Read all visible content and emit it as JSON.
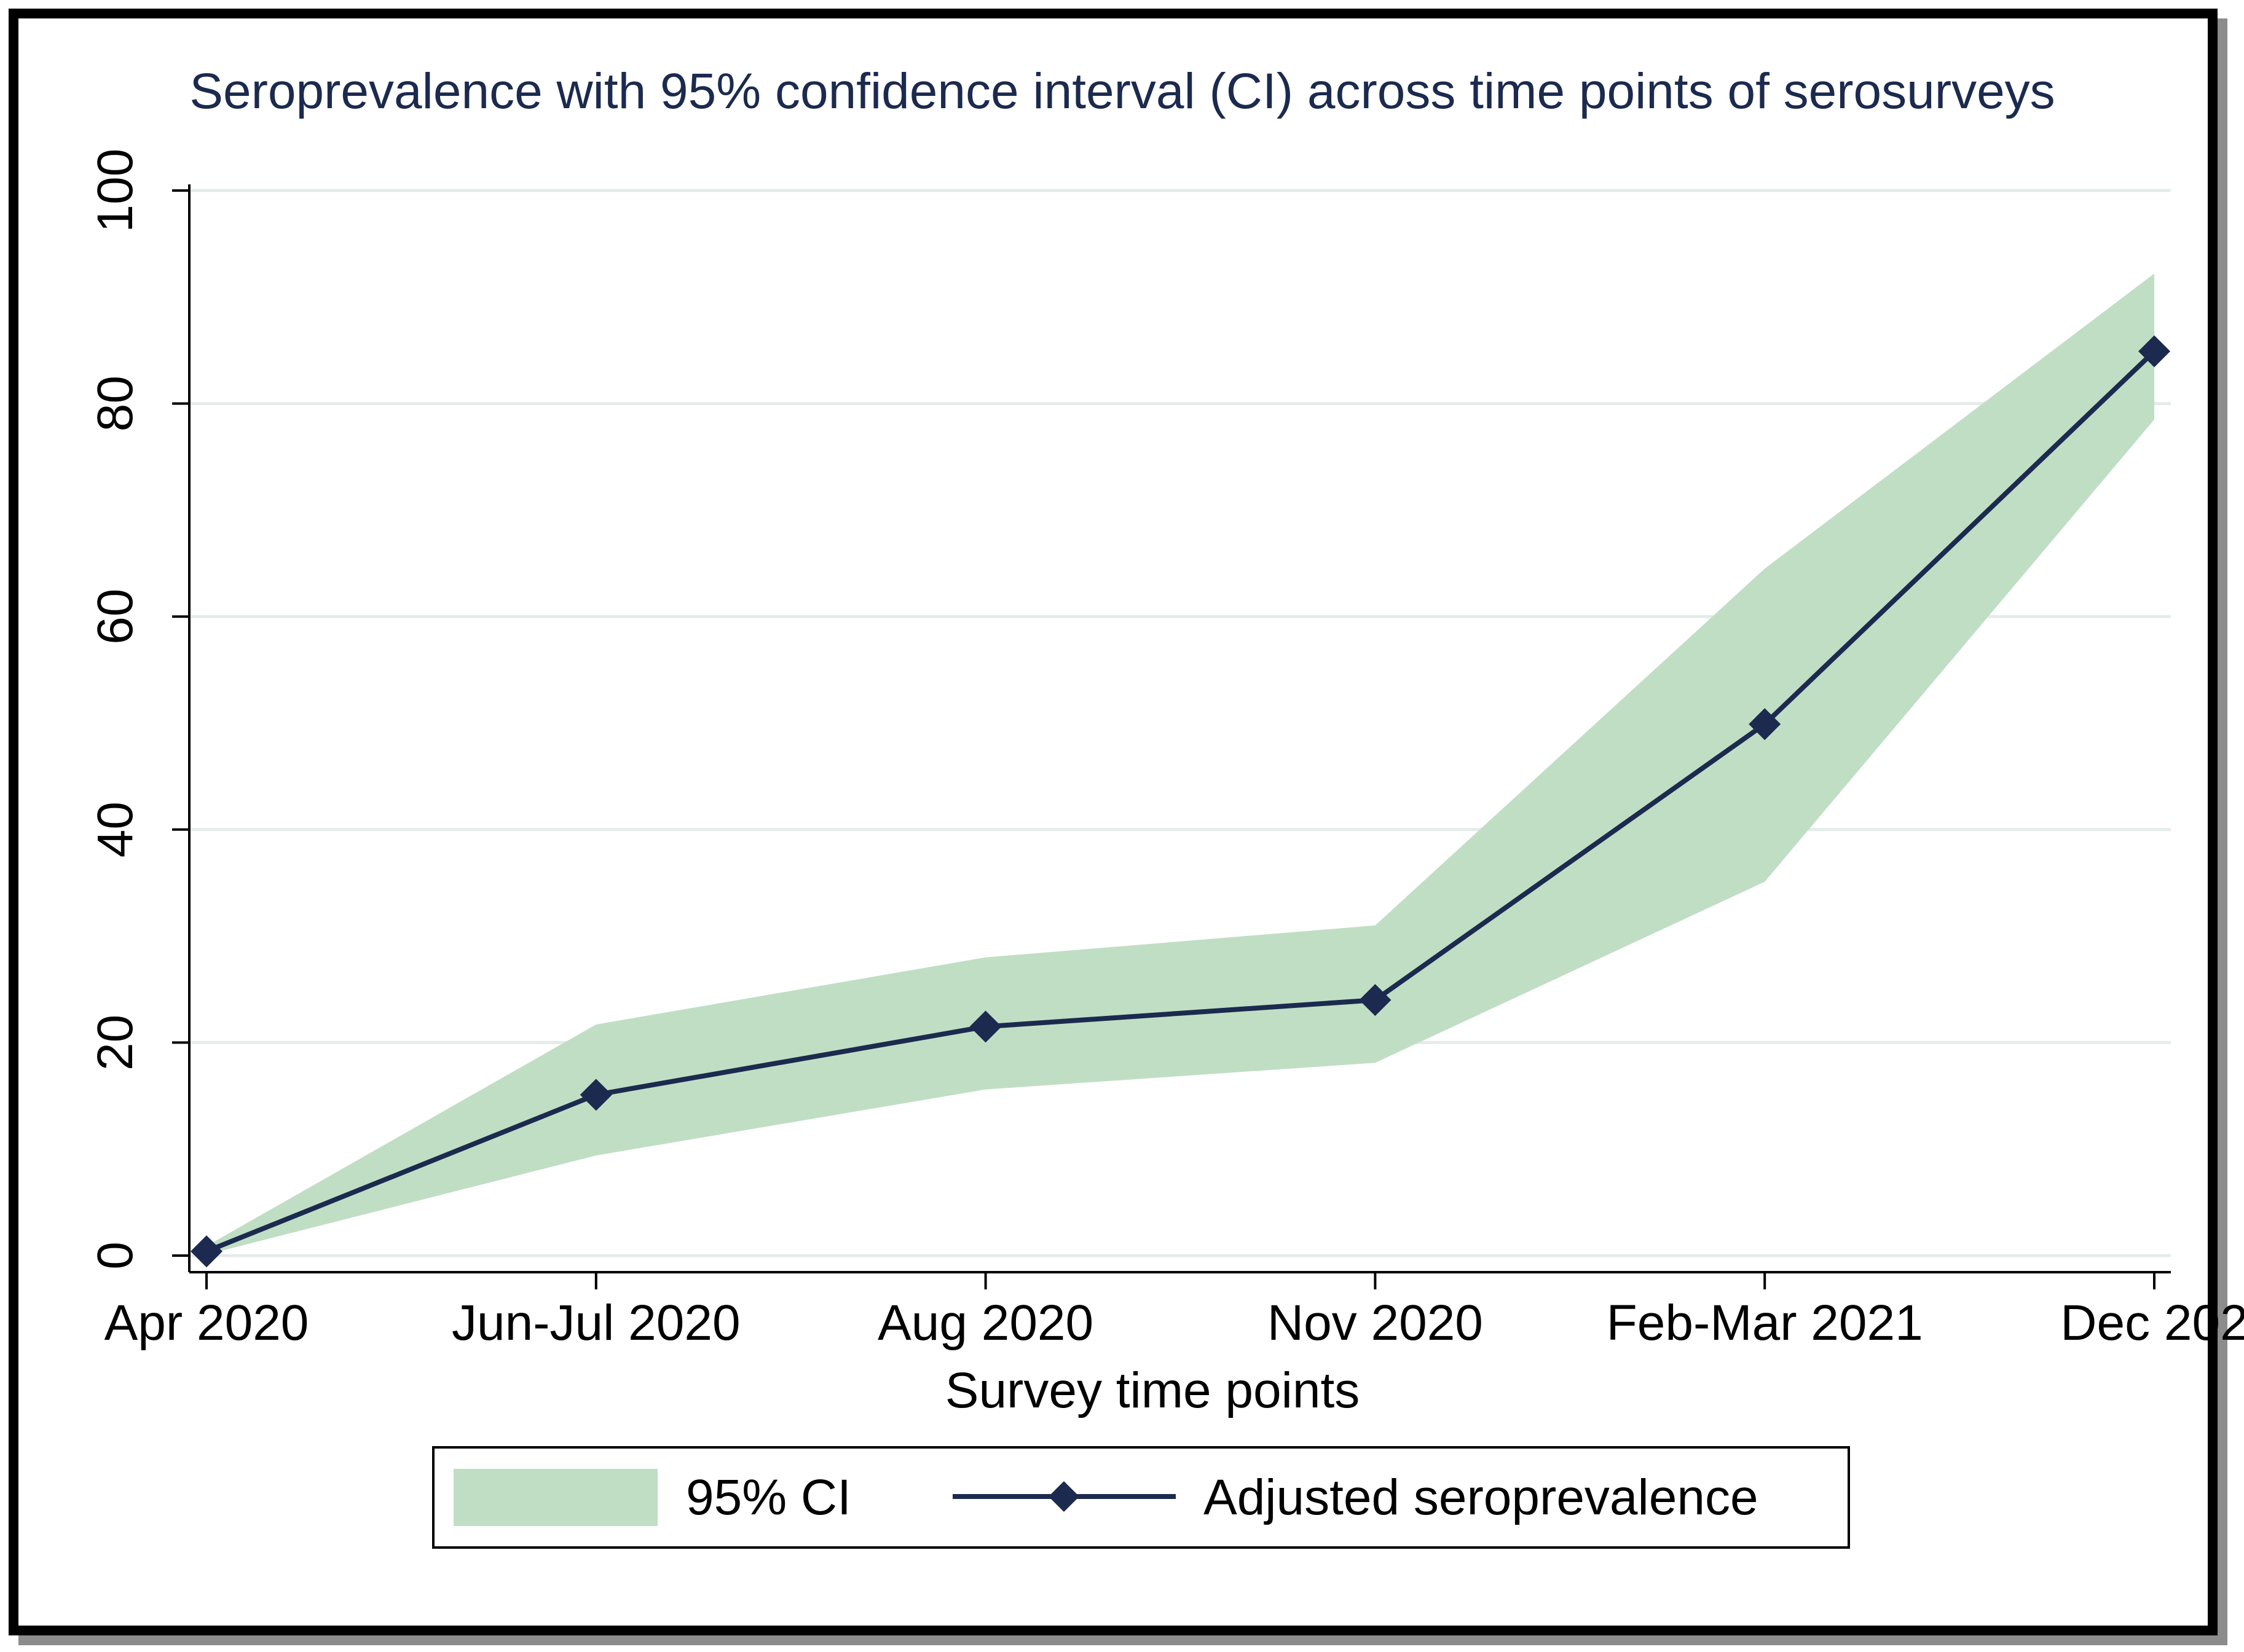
{
  "chart_data": {
    "type": "line",
    "title": "Seroprevalence with 95% confidence interval (CI) across time points of serosurveys",
    "xlabel": "Survey time points",
    "ylabel": "",
    "categories": [
      "Apr 2020",
      "Jun-Jul 2020",
      "Aug 2020",
      "Nov 2020",
      "Feb-Mar 2021",
      "Dec 202"
    ],
    "ylim": [
      0,
      100
    ],
    "yticks": [
      "0",
      "20",
      "40",
      "60",
      "80",
      "100"
    ],
    "grid": true,
    "legend_position": "bottom",
    "series": [
      {
        "name": "Adjusted seroprevalence",
        "values": [
          0.4,
          15.1,
          21.5,
          24.0,
          49.9,
          84.9
        ]
      },
      {
        "name": "95% CI",
        "lower": [
          0.1,
          9.4,
          15.6,
          18.1,
          35.1,
          78.5
        ],
        "upper": [
          0.9,
          21.7,
          28.0,
          31.0,
          64.5,
          92.2
        ]
      }
    ],
    "colors": {
      "line": "#1b2a4e",
      "band": "#c0dec4",
      "grid": "#e4ece8",
      "title": "#1b2a4e",
      "axis": "#000000"
    }
  }
}
